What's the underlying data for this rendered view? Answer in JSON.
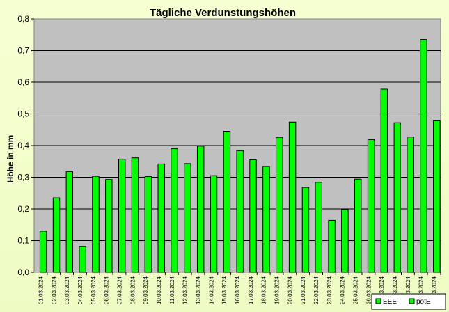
{
  "chart_data": {
    "type": "bar",
    "title": "Tägliche Verdunstungshöhen",
    "xlabel": "",
    "ylabel": "Höhe in mm",
    "ylim": [
      0,
      0.8
    ],
    "yticks": [
      "0,0",
      "0,1",
      "0,2",
      "0,3",
      "0,4",
      "0,5",
      "0,6",
      "0,7",
      "0,8"
    ],
    "grid": true,
    "legend_position": "bottom-right",
    "legend": [
      "EEE",
      "potE"
    ],
    "categories": [
      "01.03.2024",
      "02.03.2024",
      "03.03.2024",
      "04.03.2024",
      "05.03.2024",
      "06.03.2024",
      "07.03.2024",
      "08.03.2024",
      "09.03.2024",
      "10.03.2024",
      "11.03.2024",
      "12.03.2024",
      "13.03.2024",
      "14.03.2024",
      "15.03.2024",
      "16.03.2024",
      "17.03.2024",
      "18.03.2024",
      "19.03.2024",
      "20.03.2024",
      "21.03.2024",
      "22.03.2024",
      "23.03.2024",
      "24.03.2024",
      "25.03.2024",
      "26.03.2024",
      "27.03.2024",
      "28.03.2024",
      "29.03.2024",
      "30.03.2024",
      "31.03.2024"
    ],
    "series": [
      {
        "name": "EEE",
        "color": "#00ff00",
        "values": [
          null,
          null,
          null,
          null,
          null,
          null,
          null,
          null,
          null,
          null,
          null,
          null,
          null,
          null,
          null,
          null,
          null,
          null,
          null,
          null,
          null,
          null,
          null,
          null,
          null,
          null,
          null,
          null,
          null,
          null,
          null
        ]
      },
      {
        "name": "potE",
        "color": "#00ff00",
        "values": [
          0.13,
          0.235,
          0.318,
          0.082,
          0.303,
          0.293,
          0.357,
          0.361,
          0.302,
          0.342,
          0.39,
          0.343,
          0.398,
          0.305,
          0.445,
          0.384,
          0.355,
          0.334,
          0.426,
          0.474,
          0.268,
          0.284,
          0.164,
          0.198,
          0.294,
          0.419,
          0.578,
          0.472,
          0.427,
          0.735,
          0.478
        ]
      }
    ]
  },
  "colors": {
    "plot_area": "#c0c0c0",
    "bar_fill": "#00ff00",
    "bar_stroke": "#000000",
    "page_background": "#f4ffd0"
  }
}
